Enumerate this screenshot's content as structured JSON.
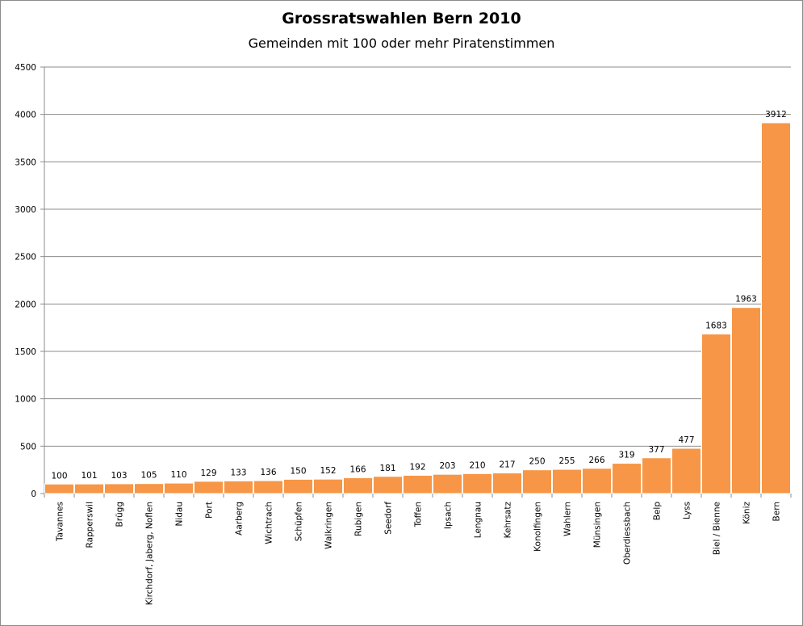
{
  "chart_data": {
    "type": "bar",
    "title": "Grossratswahlen Bern 2010",
    "subtitle": "Gemeinden mit 100 oder mehr Piratenstimmen",
    "xlabel": "",
    "ylabel": "",
    "ylim": [
      0,
      4500
    ],
    "yticks": [
      0,
      500,
      1000,
      1500,
      2000,
      2500,
      3000,
      3500,
      4000,
      4500
    ],
    "grid": true,
    "legend": "none",
    "bar_color": "#F79646",
    "categories": [
      "Tavannes",
      "Rapperswil",
      "Brügg",
      "Kirchdorf, Jaberg, Noflen",
      "Nidau",
      "Port",
      "Aarberg",
      "Wichtrach",
      "Schüpfen",
      "Walkringen",
      "Rubigen",
      "Seedorf",
      "Toffen",
      "Ipsach",
      "Lengnau",
      "Kehrsatz",
      "Konolfingen",
      "Wahlern",
      "Münsingen",
      "Oberdiessbach",
      "Belp",
      "Lyss",
      "Biel / Bienne",
      "Köniz",
      "Bern"
    ],
    "values": [
      100,
      101,
      103,
      105,
      110,
      129,
      133,
      136,
      150,
      152,
      166,
      181,
      192,
      203,
      210,
      217,
      250,
      255,
      266,
      319,
      377,
      477,
      1683,
      1963,
      3912
    ]
  }
}
